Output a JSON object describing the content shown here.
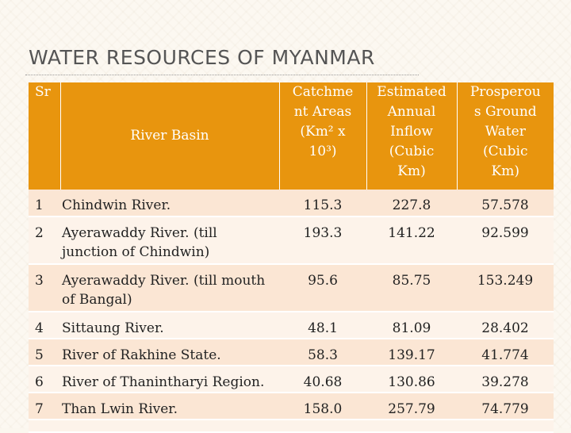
{
  "slide": {
    "title": "WATER RESOURCES OF MYANMAR"
  },
  "table": {
    "headers": {
      "sr": "Sr",
      "basin": "River Basin",
      "catchment": [
        "Catchme",
        "nt Areas",
        "(Km² x",
        "10³)"
      ],
      "inflow": [
        "Estimated",
        "Annual",
        "Inflow",
        "(Cubic",
        "Km)"
      ],
      "groundwater": [
        "Prosperou",
        "s Ground",
        "Water",
        "(Cubic",
        "Km)"
      ]
    },
    "rows": [
      {
        "sr": "1",
        "basin": [
          "Chindwin River."
        ],
        "catchment": "115.3",
        "inflow": "227.8",
        "groundwater": "57.578"
      },
      {
        "sr": "2",
        "basin": [
          "Ayerawaddy River. (till",
          "junction of  Chindwin)"
        ],
        "catchment": "193.3",
        "inflow": "141.22",
        "groundwater": "92.599"
      },
      {
        "sr": "3",
        "basin": [
          "Ayerawaddy River. (till mouth",
          "of Bangal)"
        ],
        "catchment": "95.6",
        "inflow": "85.75",
        "groundwater": "153.249"
      },
      {
        "sr": "4",
        "basin": [
          "Sittaung River."
        ],
        "catchment": "48.1",
        "inflow": "81.09",
        "groundwater": "28.402"
      },
      {
        "sr": "5",
        "basin": [
          "River of Rakhine State."
        ],
        "catchment": "58.3",
        "inflow": "139.17",
        "groundwater": "41.774"
      },
      {
        "sr": "6",
        "basin": [
          "River of Thanintharyi  Region."
        ],
        "catchment": "40.68",
        "inflow": "130.86",
        "groundwater": "39.278"
      },
      {
        "sr": "7",
        "basin": [
          "Than Lwin River."
        ],
        "catchment": "158.0",
        "inflow": "257.79",
        "groundwater": "74.779"
      }
    ]
  },
  "colors": {
    "header_bg": "#e8950e",
    "header_text": "#ffffff",
    "row_odd": "#fbe6d4",
    "row_even": "#fdf3ea",
    "title_text": "#555555"
  }
}
